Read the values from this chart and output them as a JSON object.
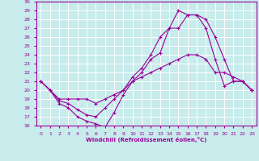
{
  "xlabel": "Windchill (Refroidissement éolien,°C)",
  "xlim": [
    -0.5,
    23.5
  ],
  "ylim": [
    16,
    30
  ],
  "xticks": [
    0,
    1,
    2,
    3,
    4,
    5,
    6,
    7,
    8,
    9,
    10,
    11,
    12,
    13,
    14,
    15,
    16,
    17,
    18,
    19,
    20,
    21,
    22,
    23
  ],
  "yticks": [
    16,
    17,
    18,
    19,
    20,
    21,
    22,
    23,
    24,
    25,
    26,
    27,
    28,
    29,
    30
  ],
  "bg_color": "#c8ecec",
  "line_color": "#990099",
  "grid_color": "#ffffff",
  "lines": [
    {
      "x": [
        0,
        1,
        2,
        3,
        4,
        5,
        6,
        7,
        8,
        9,
        10,
        11,
        12,
        13,
        14,
        15,
        16,
        17,
        18,
        19,
        20,
        21,
        22,
        23
      ],
      "y": [
        21,
        20,
        18.5,
        18,
        17,
        16.5,
        16.2,
        15.8,
        17.5,
        19.5,
        21,
        22,
        23.5,
        24.2,
        27,
        27,
        28.5,
        28.5,
        27,
        23.5,
        20.5,
        21,
        21,
        20
      ]
    },
    {
      "x": [
        0,
        1,
        2,
        3,
        4,
        5,
        6,
        7,
        8,
        9,
        10,
        11,
        12,
        13,
        14,
        15,
        16,
        17,
        18,
        19,
        20,
        21,
        22,
        23
      ],
      "y": [
        21,
        20,
        18.8,
        18.5,
        17.8,
        17.2,
        17.0,
        18.0,
        19,
        20,
        21.5,
        22.5,
        24,
        26,
        27,
        29,
        28.5,
        28.5,
        28,
        26,
        23.5,
        21,
        21,
        20
      ]
    },
    {
      "x": [
        0,
        1,
        2,
        3,
        4,
        5,
        6,
        7,
        8,
        9,
        10,
        11,
        12,
        13,
        14,
        15,
        16,
        17,
        18,
        19,
        20,
        21,
        22,
        23
      ],
      "y": [
        21,
        20,
        19,
        19,
        19,
        19,
        18.5,
        19,
        19.5,
        20,
        21,
        21.5,
        22,
        22.5,
        23,
        23.5,
        24,
        24,
        23.5,
        22,
        22,
        21.5,
        21,
        20
      ]
    }
  ]
}
